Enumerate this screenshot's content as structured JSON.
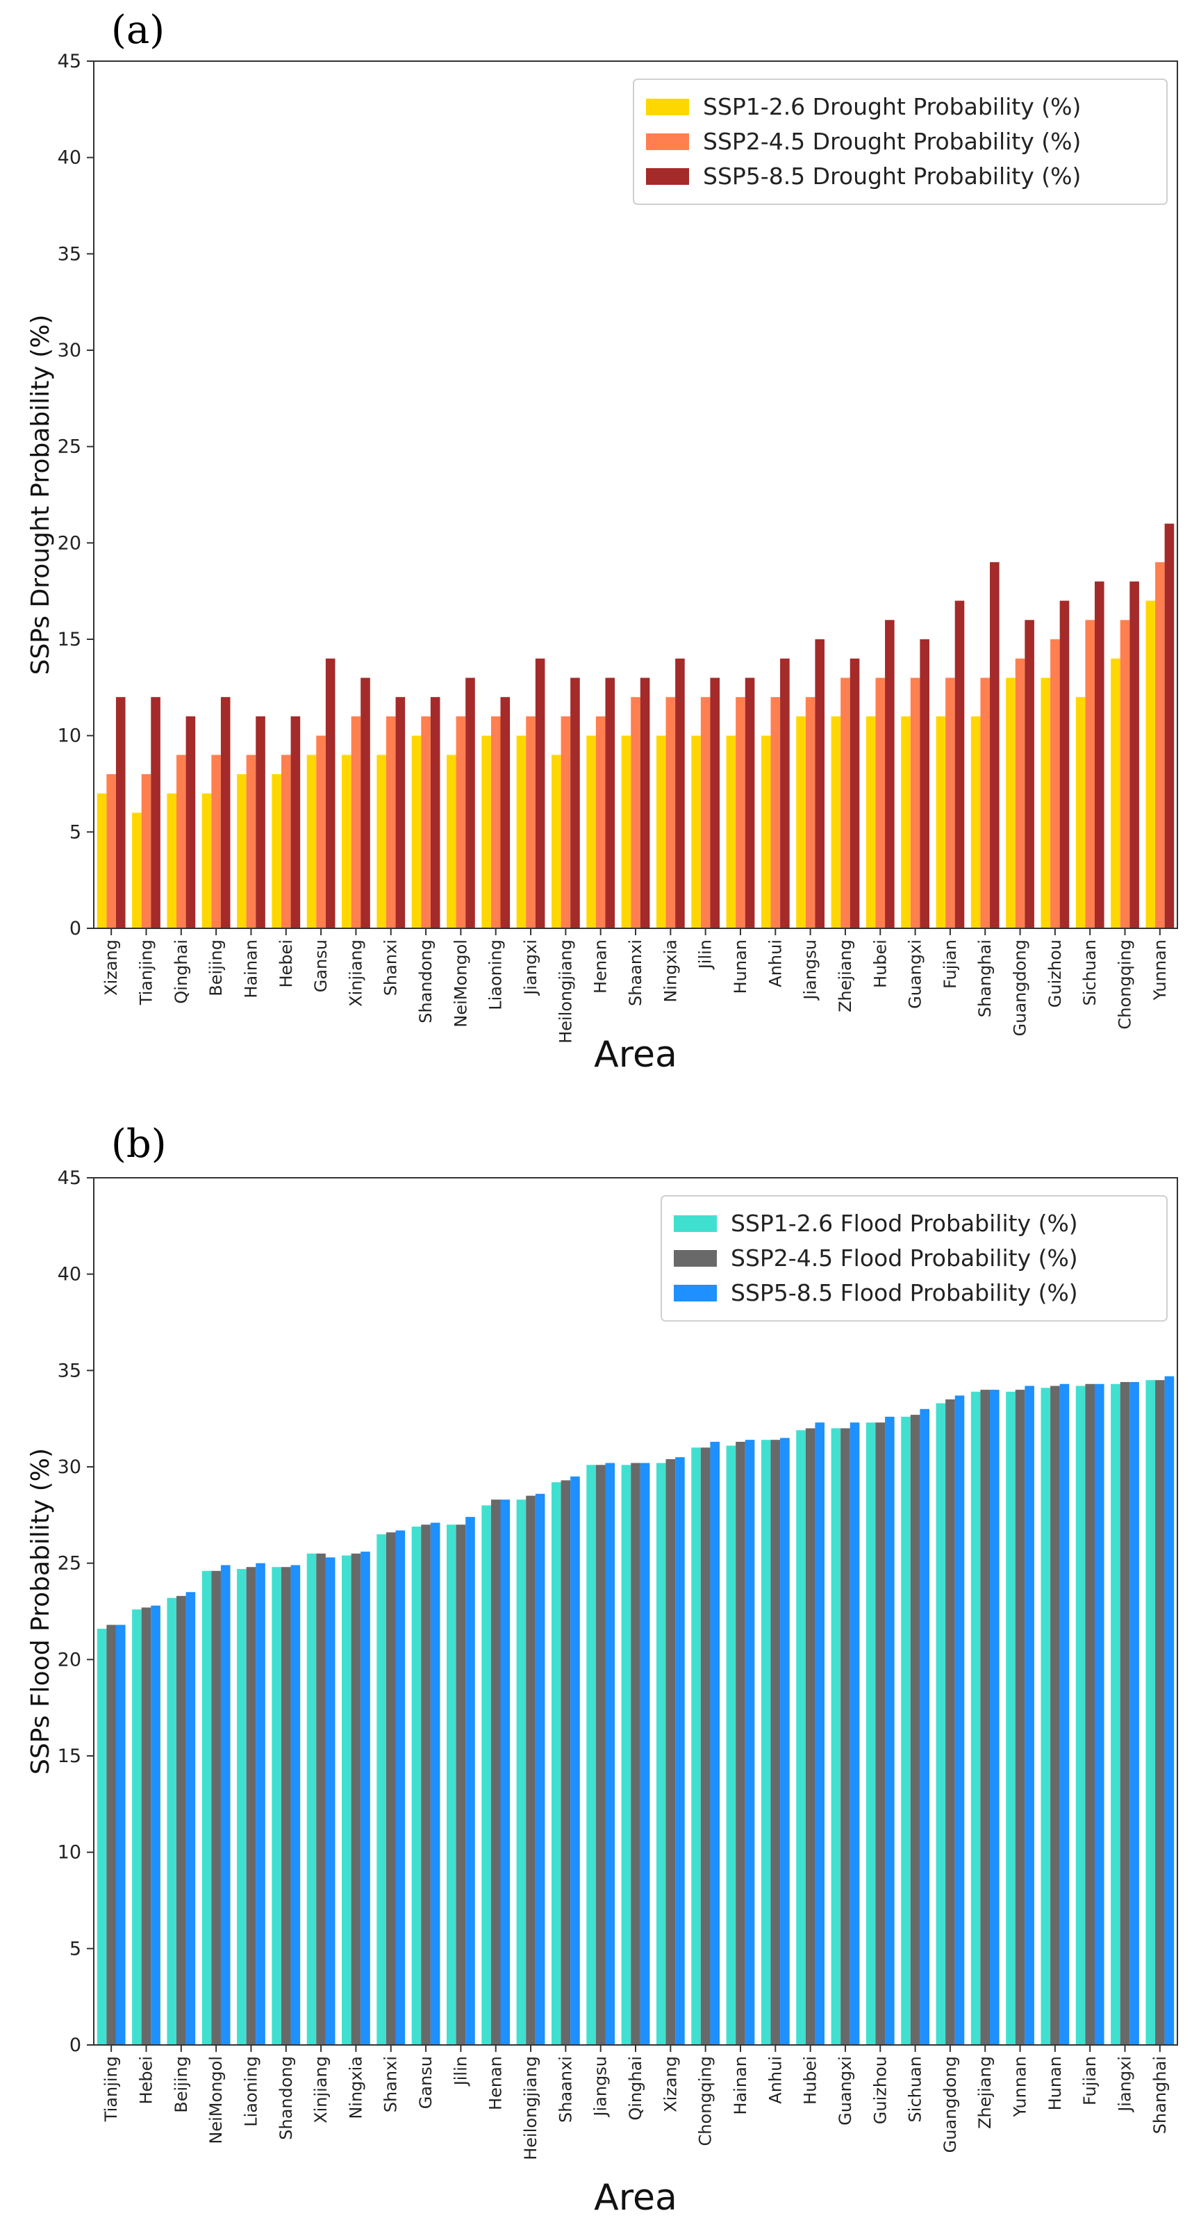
{
  "chart_data": [
    {
      "panel_label": "(a)",
      "type": "bar",
      "xlabel": "Area",
      "ylabel": "SSPs Drought Probability  (%)",
      "ylim": [
        0,
        45
      ],
      "yticks": [
        "0",
        "5",
        "10",
        "15",
        "20",
        "25",
        "30",
        "35",
        "40",
        "45"
      ],
      "legend_position": "top-right",
      "categories": [
        "Xizang",
        "Tianjing",
        "Qinghai",
        "Beijing",
        "Hainan",
        "Hebei",
        "Gansu",
        "Xinjiang",
        "Shanxi",
        "Shandong",
        "NeiMongol",
        "Liaoning",
        "Jiangxi",
        "Heilongjiang",
        "Henan",
        "Shaanxi",
        "Ningxia",
        "Jilin",
        "Hunan",
        "Anhui",
        "Jiangsu",
        "Zhejiang",
        "Hubei",
        "Guangxi",
        "Fujian",
        "Shanghai",
        "Guangdong",
        "Guizhou",
        "Sichuan",
        "Chongqing",
        "Yunnan"
      ],
      "series": [
        {
          "name": "SSP1-2.6 Drought Probability  (%)",
          "color": "#FFD700",
          "values": [
            7,
            6,
            7,
            7,
            8,
            8,
            9,
            9,
            9,
            10,
            9,
            10,
            10,
            9,
            10,
            10,
            10,
            10,
            10,
            10,
            11,
            11,
            11,
            11,
            11,
            11,
            13,
            13,
            12,
            14,
            17
          ]
        },
        {
          "name": "SSP2-4.5 Drought Probability  (%)",
          "color": "#FF7F50",
          "values": [
            8,
            8,
            9,
            9,
            9,
            9,
            10,
            11,
            11,
            11,
            11,
            11,
            11,
            11,
            11,
            12,
            12,
            12,
            12,
            12,
            12,
            13,
            13,
            13,
            13,
            13,
            14,
            15,
            16,
            16,
            19
          ]
        },
        {
          "name": "SSP5-8.5 Drought Probability  (%)",
          "color": "#A52A2A",
          "values": [
            12,
            12,
            11,
            12,
            11,
            11,
            14,
            13,
            12,
            12,
            13,
            12,
            14,
            13,
            13,
            13,
            14,
            13,
            13,
            14,
            15,
            14,
            16,
            15,
            17,
            19,
            16,
            17,
            18,
            18,
            21
          ]
        }
      ]
    },
    {
      "panel_label": "(b)",
      "type": "bar",
      "xlabel": "Area",
      "ylabel": "SSPs Flood Probability  (%)",
      "ylim": [
        0,
        45
      ],
      "yticks": [
        "0",
        "5",
        "10",
        "15",
        "20",
        "25",
        "30",
        "35",
        "40",
        "45"
      ],
      "legend_position": "top-right",
      "categories": [
        "Tianjing",
        "Hebei",
        "Beijing",
        "NeiMongol",
        "Liaoning",
        "Shandong",
        "Xinjiang",
        "Ningxia",
        "Shanxi",
        "Gansu",
        "Jilin",
        "Henan",
        "Heilongjiang",
        "Shaanxi",
        "Jiangsu",
        "Qinghai",
        "Xizang",
        "Chongqing",
        "Hainan",
        "Anhui",
        "Hubei",
        "Guangxi",
        "Guizhou",
        "Sichuan",
        "Guangdong",
        "Zhejiang",
        "Yunnan",
        "Hunan",
        "Fujian",
        "Jiangxi",
        "Shanghai"
      ],
      "series": [
        {
          "name": "SSP1-2.6 Flood Probability  (%)",
          "color": "#40E0D0",
          "values": [
            21.6,
            22.6,
            23.2,
            24.6,
            24.7,
            24.8,
            25.5,
            25.4,
            26.5,
            26.9,
            27.0,
            28.0,
            28.3,
            29.2,
            30.1,
            30.1,
            30.2,
            31.0,
            31.1,
            31.4,
            31.9,
            32.0,
            32.3,
            32.6,
            33.3,
            33.9,
            33.9,
            34.1,
            34.2,
            34.3,
            34.5
          ]
        },
        {
          "name": "SSP2-4.5 Flood Probability  (%)",
          "color": "#696969",
          "values": [
            21.8,
            22.7,
            23.3,
            24.6,
            24.8,
            24.8,
            25.5,
            25.5,
            26.6,
            27.0,
            27.0,
            28.3,
            28.5,
            29.3,
            30.1,
            30.2,
            30.4,
            31.0,
            31.3,
            31.4,
            32.0,
            32.0,
            32.3,
            32.7,
            33.5,
            34.0,
            34.0,
            34.2,
            34.3,
            34.4,
            34.5
          ]
        },
        {
          "name": "SSP5-8.5 Flood Probability  (%)",
          "color": "#1E90FF",
          "values": [
            21.8,
            22.8,
            23.5,
            24.9,
            25.0,
            24.9,
            25.3,
            25.6,
            26.7,
            27.1,
            27.4,
            28.3,
            28.6,
            29.5,
            30.2,
            30.2,
            30.5,
            31.3,
            31.4,
            31.5,
            32.3,
            32.3,
            32.6,
            33.0,
            33.7,
            34.0,
            34.2,
            34.3,
            34.3,
            34.4,
            34.7
          ]
        }
      ]
    }
  ]
}
